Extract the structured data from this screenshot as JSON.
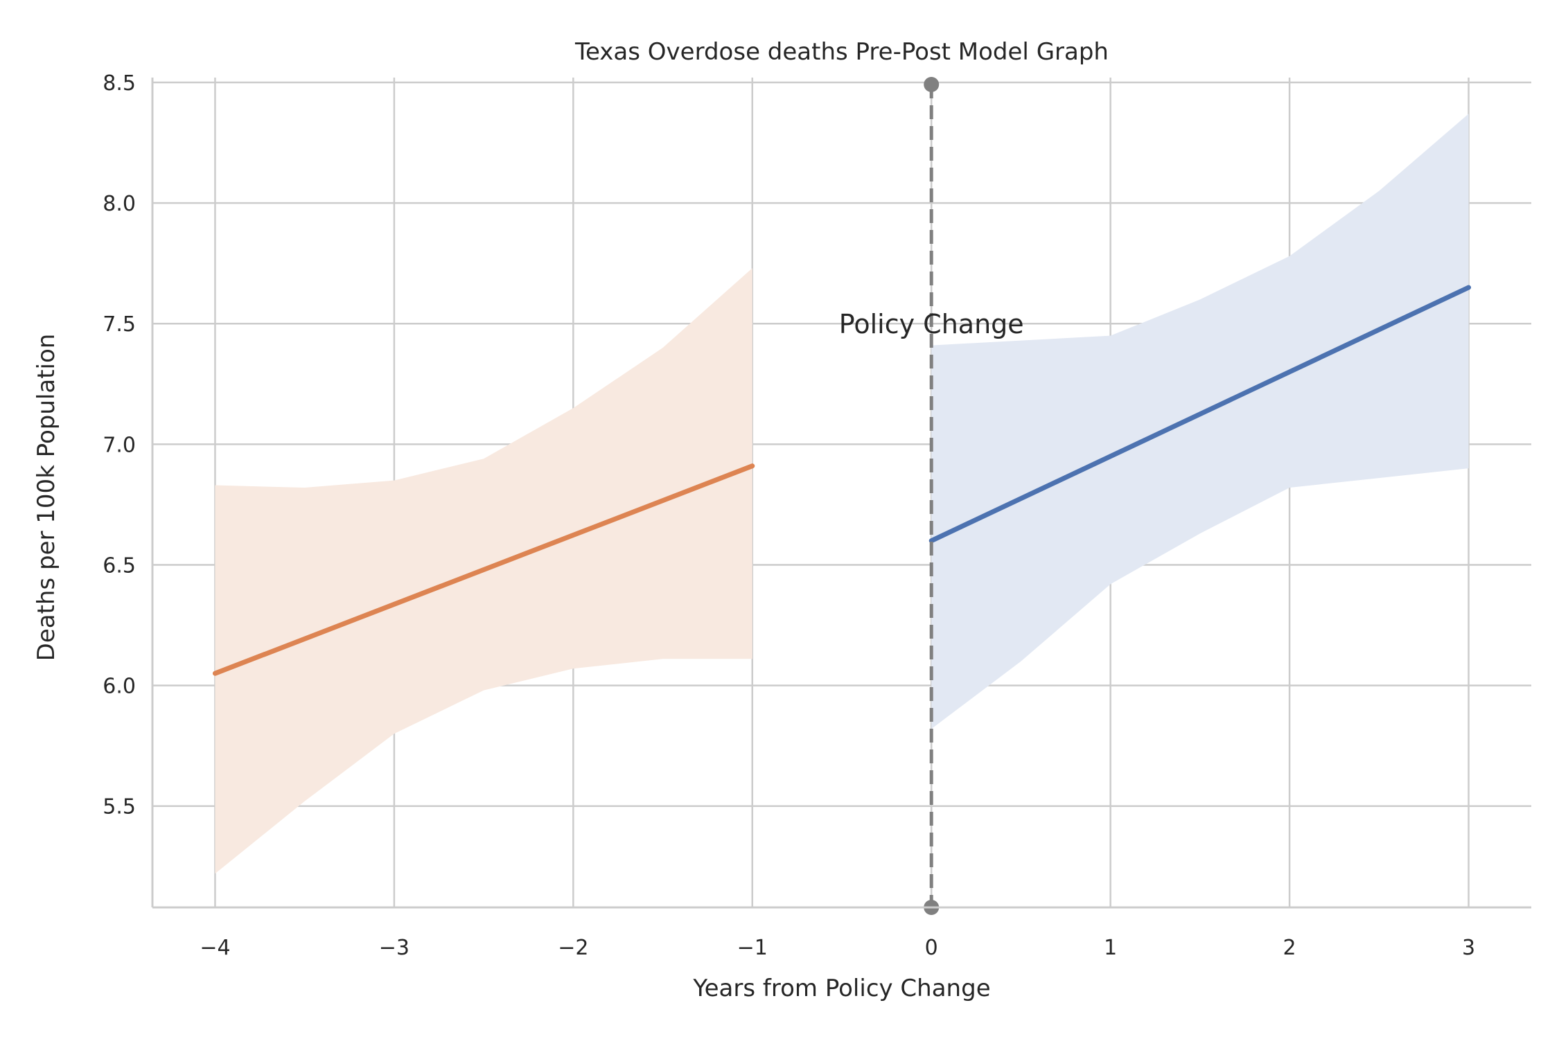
{
  "chart_data": {
    "type": "line",
    "title": "Texas Overdose deaths Pre-Post Model Graph",
    "xlabel": "Years from Policy Change",
    "ylabel": "Deaths per 100k Population",
    "xlim": [
      -4.35,
      3.35
    ],
    "ylim": [
      5.08,
      8.52
    ],
    "xticks": [
      -4,
      -3,
      -2,
      -1,
      0,
      1,
      2,
      3
    ],
    "xtick_labels": [
      "−4",
      "−3",
      "−2",
      "−1",
      "0",
      "1",
      "2",
      "3"
    ],
    "yticks": [
      5.5,
      6.0,
      6.5,
      7.0,
      7.5,
      8.0,
      8.5
    ],
    "ytick_labels": [
      "5.5",
      "6.0",
      "6.5",
      "7.0",
      "7.5",
      "8.0",
      "8.5"
    ],
    "grid": true,
    "series": [
      {
        "color": "#dd8452",
        "band_color": "#f8e9e0",
        "x": [
          -4,
          -1
        ],
        "y": [
          6.05,
          6.91
        ],
        "ci_x": [
          -4,
          -3.5,
          -3,
          -2.5,
          -2,
          -1.5,
          -1
        ],
        "ci_lower": [
          5.22,
          5.52,
          5.8,
          5.98,
          6.07,
          6.11,
          6.11
        ],
        "ci_upper": [
          6.83,
          6.82,
          6.85,
          6.94,
          7.15,
          7.4,
          7.73
        ]
      },
      {
        "color": "#4c72b0",
        "band_color": "#e2e8f3",
        "x": [
          0,
          3
        ],
        "y": [
          6.6,
          7.65
        ],
        "ci_x": [
          0,
          0.5,
          1,
          1.5,
          2,
          2.5,
          3
        ],
        "ci_lower": [
          5.82,
          6.1,
          6.42,
          6.63,
          6.82,
          6.86,
          6.9
        ],
        "ci_upper": [
          7.41,
          7.43,
          7.45,
          7.6,
          7.78,
          8.05,
          8.37
        ]
      }
    ],
    "vline": {
      "x": 0,
      "color": "#808080",
      "style": "dashed"
    },
    "annotation": {
      "text": "Policy Change",
      "x": 0,
      "y": 7.5
    }
  }
}
